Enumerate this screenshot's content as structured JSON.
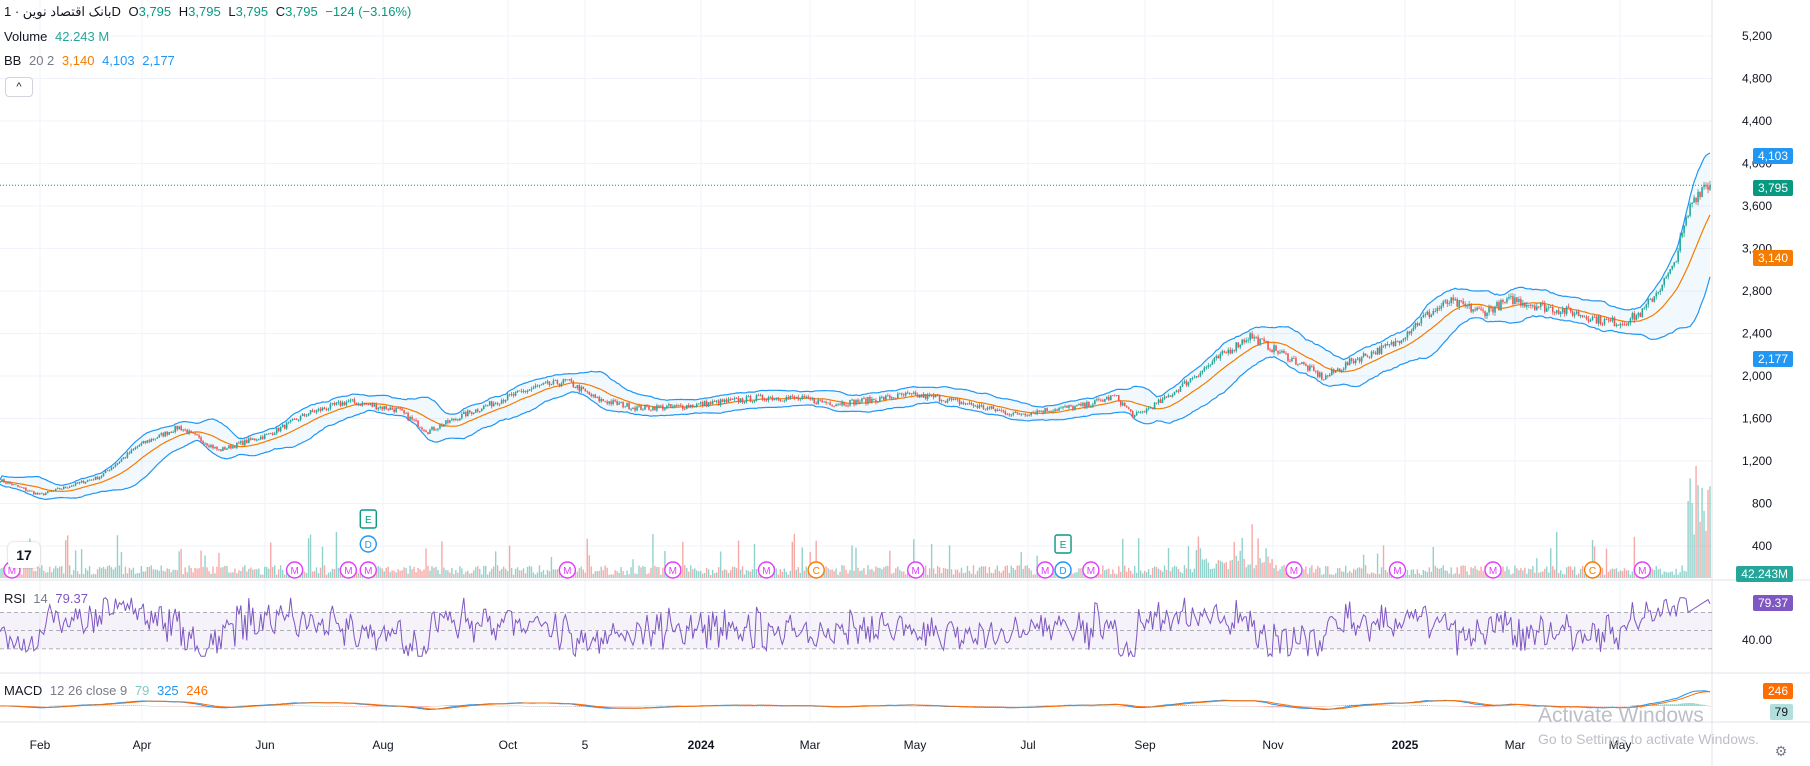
{
  "header": {
    "symbol": "بانک اقتصاد نوین · 1D",
    "o_label": "O",
    "o_value": "3,795",
    "h_label": "H",
    "h_value": "3,795",
    "l_label": "L",
    "l_value": "3,795",
    "c_label": "C",
    "c_value": "3,795",
    "change": "−124 (−3.16%)"
  },
  "volume_legend": {
    "label": "Volume",
    "value": "42.243 M"
  },
  "bb_legend": {
    "label": "BB",
    "params": "20 2",
    "basis": "3,140",
    "upper": "4,103",
    "lower": "2,177"
  },
  "rsi_legend": {
    "label": "RSI",
    "params": "14",
    "value": "79.37"
  },
  "macd_legend": {
    "label": "MACD",
    "params": "12 26 close 9",
    "hist": "79",
    "macd": "325",
    "signal": "246"
  },
  "collapse_glyph": "^",
  "logo_text": "17",
  "watermark": {
    "line1": "Activate Windows",
    "line2": "Go to Settings to activate Windows."
  },
  "badges": {
    "upper": "4,103",
    "last": "3,795",
    "basis": "3,140",
    "lower": "2,177",
    "volume": "42.243M",
    "rsi": "79.37",
    "macd_signal": "246",
    "macd_hist": "79"
  },
  "colors": {
    "up": "#26a69a",
    "down": "#ef5350",
    "basis": "#f57c00",
    "bands": "#2196f3",
    "rsi": "#7e57c2",
    "macd": "#2196f3",
    "signal": "#ff6d00",
    "marker_m": "#e040fb",
    "marker_e": "#089981",
    "marker_d": "#2196f3",
    "marker_c": "#f57c00"
  },
  "chart_data": {
    "type": "candlestick",
    "y_ticks": [
      "5,200",
      "4,800",
      "4,400",
      "4,000",
      "3,600",
      "3,200",
      "2,800",
      "2,400",
      "2,000",
      "1,600",
      "1,200",
      "800",
      "400"
    ],
    "ylim": [
      0,
      5600
    ],
    "x_ticks": [
      "Feb",
      "Apr",
      "Jun",
      "Aug",
      "Oct",
      "5",
      "2024",
      "Mar",
      "May",
      "Jul",
      "Sep",
      "Nov",
      "2025",
      "Mar",
      "May"
    ],
    "rsi_ticks": [
      "40.00"
    ],
    "last_price": 3795,
    "price_anchors": [
      [
        0,
        1020
      ],
      [
        20,
        880
      ],
      [
        50,
        1050
      ],
      [
        70,
        1350
      ],
      [
        90,
        1520
      ],
      [
        110,
        1300
      ],
      [
        135,
        1450
      ],
      [
        155,
        1650
      ],
      [
        175,
        1760
      ],
      [
        200,
        1680
      ],
      [
        215,
        1480
      ],
      [
        235,
        1650
      ],
      [
        255,
        1800
      ],
      [
        270,
        1900
      ],
      [
        285,
        1950
      ],
      [
        300,
        1780
      ],
      [
        320,
        1700
      ],
      [
        340,
        1710
      ],
      [
        365,
        1760
      ],
      [
        385,
        1800
      ],
      [
        400,
        1790
      ],
      [
        420,
        1740
      ],
      [
        440,
        1780
      ],
      [
        455,
        1820
      ],
      [
        470,
        1800
      ],
      [
        490,
        1720
      ],
      [
        510,
        1640
      ],
      [
        530,
        1690
      ],
      [
        545,
        1720
      ],
      [
        560,
        1810
      ],
      [
        570,
        1620
      ],
      [
        585,
        1780
      ],
      [
        600,
        2000
      ],
      [
        615,
        2210
      ],
      [
        628,
        2380
      ],
      [
        640,
        2250
      ],
      [
        655,
        2100
      ],
      [
        665,
        1980
      ],
      [
        680,
        2150
      ],
      [
        700,
        2300
      ],
      [
        715,
        2550
      ],
      [
        728,
        2700
      ],
      [
        745,
        2600
      ],
      [
        760,
        2720
      ],
      [
        775,
        2650
      ],
      [
        790,
        2600
      ],
      [
        805,
        2520
      ],
      [
        815,
        2500
      ],
      [
        825,
        2600
      ],
      [
        840,
        3000
      ],
      [
        850,
        3650
      ],
      [
        856,
        3800
      ]
    ],
    "markers": [
      {
        "type": "M",
        "x": 6
      },
      {
        "type": "M",
        "x": 148
      },
      {
        "type": "M",
        "x": 175
      },
      {
        "type": "M",
        "x": 185
      },
      {
        "type": "E",
        "x": 185
      },
      {
        "type": "D",
        "x": 185
      },
      {
        "type": "M",
        "x": 285
      },
      {
        "type": "M",
        "x": 338
      },
      {
        "type": "M",
        "x": 385
      },
      {
        "type": "C",
        "x": 410
      },
      {
        "type": "M",
        "x": 460
      },
      {
        "type": "M",
        "x": 525
      },
      {
        "type": "E",
        "x": 534
      },
      {
        "type": "D",
        "x": 534
      },
      {
        "type": "M",
        "x": 548
      },
      {
        "type": "M",
        "x": 650
      },
      {
        "type": "M",
        "x": 702
      },
      {
        "type": "M",
        "x": 750
      },
      {
        "type": "C",
        "x": 800
      },
      {
        "type": "M",
        "x": 825
      }
    ]
  }
}
